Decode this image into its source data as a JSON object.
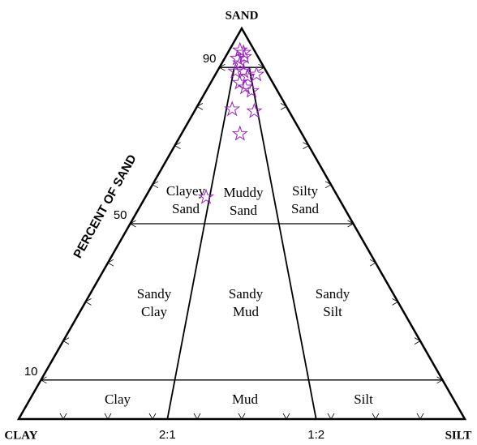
{
  "chart_data": {
    "type": "ternary",
    "apex_labels": {
      "top": "SAND",
      "left": "CLAY",
      "right": "SILT"
    },
    "axis_label": "PERCENT OF SAND",
    "sand_lines": [
      10,
      50,
      90
    ],
    "ratio_lines": [
      {
        "label": "2:1",
        "clay": 2,
        "silt": 1
      },
      {
        "label": "1:2",
        "clay": 1,
        "silt": 2
      }
    ],
    "minor_ticks": [
      10,
      20,
      30,
      40,
      50,
      60,
      70,
      80,
      90
    ],
    "fields": [
      {
        "lines": [
          "Clayey",
          "Sand"
        ]
      },
      {
        "lines": [
          "Muddy",
          "Sand"
        ]
      },
      {
        "lines": [
          "Silty",
          "Sand"
        ]
      },
      {
        "lines": [
          "Sandy",
          "Clay"
        ]
      },
      {
        "lines": [
          "Sandy",
          "Mud"
        ]
      },
      {
        "lines": [
          "Sandy",
          "Silt"
        ]
      },
      {
        "lines": [
          "Clay"
        ]
      },
      {
        "lines": [
          "Mud"
        ]
      },
      {
        "lines": [
          "Silt"
        ]
      }
    ],
    "marker_color": "#9a1fc9",
    "points": [
      {
        "sand": 94.4,
        "silt": 2.4
      },
      {
        "sand": 93.8,
        "silt": 3.5
      },
      {
        "sand": 92.3,
        "silt": 2.9
      },
      {
        "sand": 92.7,
        "silt": 4.2
      },
      {
        "sand": 91.1,
        "silt": 4.1
      },
      {
        "sand": 89.0,
        "silt": 4.1
      },
      {
        "sand": 89.0,
        "silt": 5.9
      },
      {
        "sand": 88.2,
        "silt": 9.2
      },
      {
        "sand": 87.7,
        "silt": 7.4
      },
      {
        "sand": 86.1,
        "silt": 6.5
      },
      {
        "sand": 84.0,
        "silt": 10.2
      },
      {
        "sand": 84.9,
        "silt": 8.3
      },
      {
        "sand": 79.3,
        "silt": 8.2
      },
      {
        "sand": 78.8,
        "silt": 13.4
      },
      {
        "sand": 73.0,
        "silt": 13.1
      },
      {
        "sand": 56.8,
        "silt": 13.6
      }
    ]
  }
}
